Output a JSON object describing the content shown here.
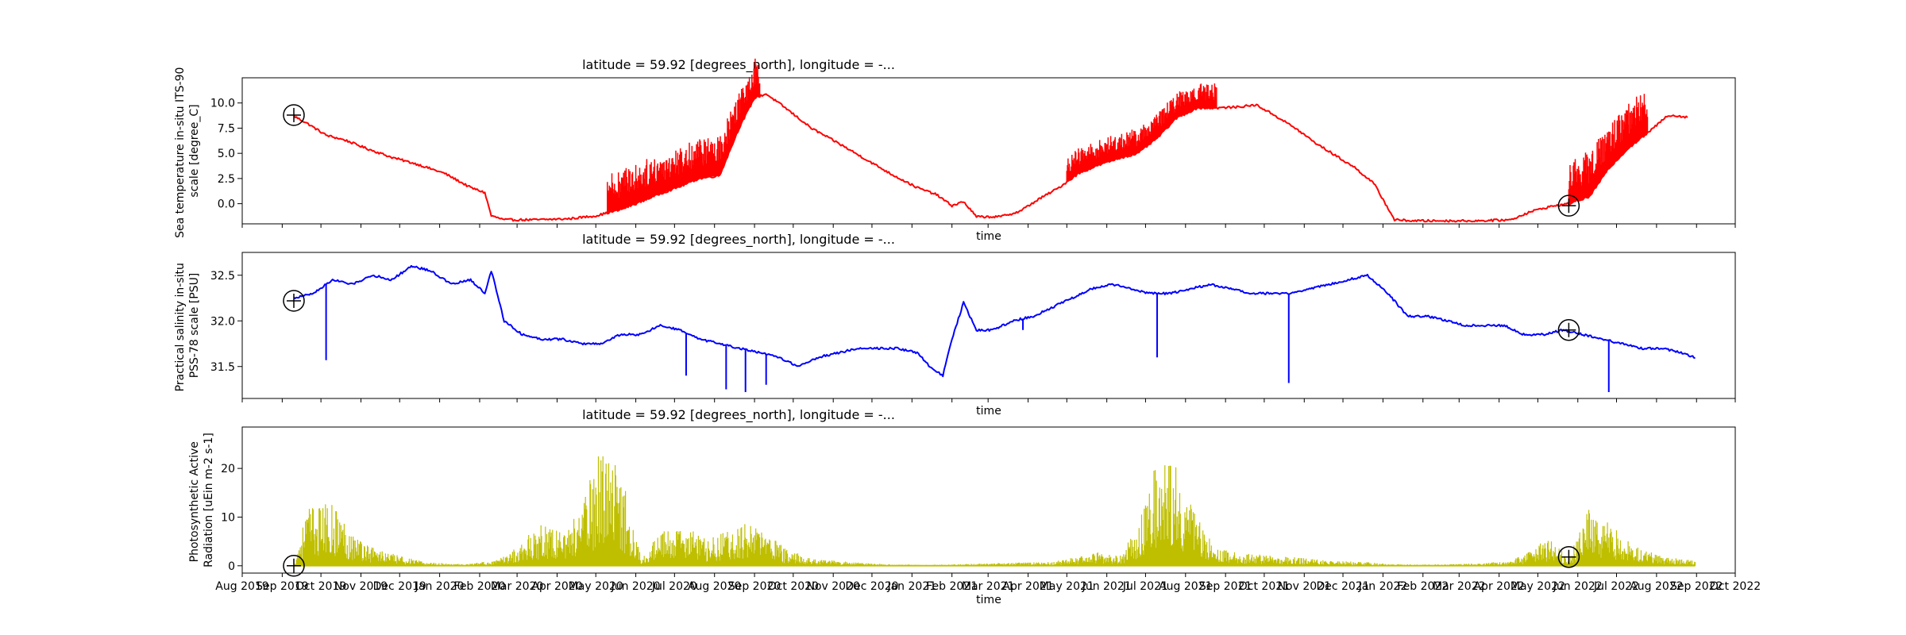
{
  "figure": {
    "marker_color": "#000000",
    "marker_symbol": "circle-plus",
    "x_tick_labels": [
      "Aug 2019",
      "Sep 2019",
      "Oct 2019",
      "Nov 2019",
      "Dec 2019",
      "Jan 2020",
      "Feb 2020",
      "Mar 2020",
      "Apr 2020",
      "May 2020",
      "Jun 2020",
      "Jul 2020",
      "Aug 2020",
      "Sep 2020",
      "Oct 2020",
      "Nov 2020",
      "Dec 2020",
      "Jan 2021",
      "Feb 2021",
      "Mar 2021",
      "Apr 2021",
      "May 2021",
      "Jun 2021",
      "Jul 2021",
      "Aug 2021",
      "Sep 2021",
      "Oct 2021",
      "Nov 2021",
      "Dec 2021",
      "Jan 2022",
      "Feb 2022",
      "Mar 2022",
      "Apr 2022",
      "May 2022",
      "Jun 2022",
      "Jul 2022",
      "Aug 2022",
      "Sep 2022",
      "Oct 2022"
    ]
  },
  "chart_data": [
    {
      "type": "line",
      "title": "latitude = 59.92 [degrees_north], longitude = -...",
      "xlabel": "time",
      "ylabel": [
        "Sea temperature in-situ ITS-90",
        "scale [degree_C]"
      ],
      "color": "#ff0000",
      "xlim": [
        "2019-08-01",
        "2022-10-01"
      ],
      "ylim": [
        -2,
        12.5
      ],
      "yticks": [
        0.0,
        2.5,
        5.0,
        7.5,
        10.0
      ],
      "ytick_labels": [
        "0.0",
        "2.5",
        "5.0",
        "7.5",
        "10.0"
      ],
      "markers": [
        {
          "date": "2019-09-10",
          "value": 8.8
        },
        {
          "date": "2022-05-25",
          "value": -0.2
        }
      ],
      "x": [
        "2019-09-10",
        "2019-09-20",
        "2019-10-05",
        "2019-10-20",
        "2019-11-05",
        "2019-11-25",
        "2019-12-15",
        "2020-01-05",
        "2020-01-25",
        "2020-02-05",
        "2020-02-10",
        "2020-02-20",
        "2020-03-15",
        "2020-04-10",
        "2020-05-01",
        "2020-05-20",
        "2020-06-01",
        "2020-06-20",
        "2020-07-05",
        "2020-07-20",
        "2020-08-05",
        "2020-08-20",
        "2020-09-01",
        "2020-09-10",
        "2020-09-25",
        "2020-10-15",
        "2020-11-05",
        "2020-11-25",
        "2020-12-15",
        "2021-01-05",
        "2021-01-20",
        "2021-02-01",
        "2021-02-10",
        "2021-02-20",
        "2021-03-10",
        "2021-03-25",
        "2021-04-10",
        "2021-04-25",
        "2021-05-10",
        "2021-05-25",
        "2021-06-10",
        "2021-06-25",
        "2021-07-10",
        "2021-07-25",
        "2021-08-10",
        "2021-08-25",
        "2021-09-10",
        "2021-09-25",
        "2021-10-10",
        "2021-10-25",
        "2021-11-10",
        "2021-11-25",
        "2021-12-10",
        "2021-12-25",
        "2022-01-10",
        "2022-01-25",
        "2022-02-15",
        "2022-03-15",
        "2022-04-10",
        "2022-04-25",
        "2022-05-10",
        "2022-05-25",
        "2022-06-10",
        "2022-06-25",
        "2022-07-10",
        "2022-07-25",
        "2022-08-10",
        "2022-08-25"
      ],
      "y": [
        8.7,
        8.0,
        6.8,
        6.3,
        5.5,
        4.6,
        3.9,
        3.0,
        1.6,
        1.1,
        -1.2,
        -1.6,
        -1.6,
        -1.5,
        -1.2,
        -0.6,
        0.0,
        1.0,
        1.7,
        2.5,
        2.8,
        7.5,
        10.5,
        10.9,
        9.5,
        7.5,
        6.0,
        4.5,
        3.0,
        1.6,
        0.9,
        -0.2,
        0.2,
        -1.3,
        -1.3,
        -0.8,
        0.5,
        1.6,
        3.0,
        3.8,
        4.5,
        5.0,
        6.5,
        8.5,
        9.5,
        9.5,
        9.6,
        9.8,
        8.7,
        7.5,
        6.0,
        4.8,
        3.6,
        2.0,
        -1.6,
        -1.7,
        -1.7,
        -1.7,
        -1.6,
        -0.8,
        -0.3,
        0.0,
        0.7,
        3.5,
        5.5,
        7.0,
        8.8,
        8.6
      ],
      "noise": [
        {
          "from": "2020-05-10",
          "to": "2020-09-05",
          "amp": 4.0
        },
        {
          "from": "2021-05-01",
          "to": "2021-08-25",
          "amp": 2.5
        },
        {
          "from": "2022-05-25",
          "to": "2022-07-25",
          "amp": 4.5
        }
      ]
    },
    {
      "type": "line",
      "title": "latitude = 59.92 [degrees_north], longitude = -...",
      "xlabel": "time",
      "ylabel": [
        "Practical salinity in-situ",
        "PSS-78 scale [PSU]"
      ],
      "color": "#0000ff",
      "xlim": [
        "2019-08-01",
        "2022-10-01"
      ],
      "ylim": [
        31.15,
        32.75
      ],
      "yticks": [
        31.5,
        32.0,
        32.5
      ],
      "ytick_labels": [
        "31.5",
        "32.0",
        "32.5"
      ],
      "markers": [
        {
          "date": "2019-09-10",
          "value": 32.22
        },
        {
          "date": "2022-05-25",
          "value": 31.9
        }
      ],
      "x": [
        "2019-09-10",
        "2019-09-25",
        "2019-10-10",
        "2019-10-25",
        "2019-11-10",
        "2019-11-25",
        "2019-12-10",
        "2019-12-25",
        "2020-01-10",
        "2020-01-25",
        "2020-02-05",
        "2020-02-10",
        "2020-02-20",
        "2020-03-05",
        "2020-03-20",
        "2020-04-05",
        "2020-04-20",
        "2020-05-05",
        "2020-05-20",
        "2020-06-05",
        "2020-06-20",
        "2020-07-05",
        "2020-07-20",
        "2020-08-05",
        "2020-08-20",
        "2020-09-05",
        "2020-09-20",
        "2020-10-05",
        "2020-10-20",
        "2020-11-05",
        "2020-11-20",
        "2020-12-05",
        "2020-12-20",
        "2021-01-05",
        "2021-01-15",
        "2021-01-25",
        "2021-02-01",
        "2021-02-10",
        "2021-02-20",
        "2021-03-05",
        "2021-03-20",
        "2021-04-05",
        "2021-04-20",
        "2021-05-05",
        "2021-05-20",
        "2021-06-05",
        "2021-06-20",
        "2021-07-05",
        "2021-07-20",
        "2021-08-05",
        "2021-08-20",
        "2021-09-05",
        "2021-09-20",
        "2021-10-05",
        "2021-10-20",
        "2021-11-05",
        "2021-11-20",
        "2021-12-05",
        "2021-12-20",
        "2022-01-05",
        "2022-01-20",
        "2022-02-05",
        "2022-02-20",
        "2022-03-05",
        "2022-03-20",
        "2022-04-05",
        "2022-04-20",
        "2022-05-05",
        "2022-05-20",
        "2022-06-05",
        "2022-06-20",
        "2022-07-05",
        "2022-07-20",
        "2022-08-05",
        "2022-08-20",
        "2022-08-31"
      ],
      "y": [
        32.25,
        32.3,
        32.45,
        32.4,
        32.5,
        32.45,
        32.6,
        32.55,
        32.4,
        32.45,
        32.3,
        32.55,
        32.0,
        31.85,
        31.8,
        31.8,
        31.75,
        31.75,
        31.85,
        31.85,
        31.95,
        31.9,
        31.8,
        31.75,
        31.7,
        31.65,
        31.6,
        31.5,
        31.6,
        31.65,
        31.7,
        31.7,
        31.7,
        31.65,
        31.5,
        31.4,
        31.8,
        32.2,
        31.9,
        31.9,
        32.0,
        32.05,
        32.15,
        32.25,
        32.35,
        32.4,
        32.35,
        32.3,
        32.3,
        32.35,
        32.4,
        32.35,
        32.3,
        32.3,
        32.3,
        32.35,
        32.4,
        32.45,
        32.5,
        32.3,
        32.05,
        32.05,
        32.0,
        31.95,
        31.95,
        31.95,
        31.85,
        31.85,
        31.9,
        31.85,
        31.8,
        31.75,
        31.7,
        31.7,
        31.65,
        31.6
      ],
      "spikes": [
        {
          "date": "2019-10-05",
          "value": 31.57
        },
        {
          "date": "2020-07-10",
          "value": 31.4
        },
        {
          "date": "2020-08-10",
          "value": 31.25
        },
        {
          "date": "2020-08-25",
          "value": 31.22
        },
        {
          "date": "2020-09-10",
          "value": 31.3
        },
        {
          "date": "2021-03-28",
          "value": 31.9
        },
        {
          "date": "2021-07-10",
          "value": 31.6
        },
        {
          "date": "2021-10-20",
          "value": 31.32
        },
        {
          "date": "2022-06-25",
          "value": 31.22
        }
      ]
    },
    {
      "type": "area",
      "title": "latitude = 59.92 [degrees_north], longitude = -...",
      "xlabel": "time",
      "ylabel": [
        "Photosynthetic Active",
        "Radiation [uEin m-2 s-1]"
      ],
      "color": "#bfbf00",
      "xlim": [
        "2019-08-01",
        "2022-10-01"
      ],
      "ylim": [
        -1.5,
        28.5
      ],
      "yticks": [
        0,
        10,
        20
      ],
      "ytick_labels": [
        "0",
        "10",
        "20"
      ],
      "markers": [
        {
          "date": "2019-09-10",
          "value": 0.0
        },
        {
          "date": "2022-05-25",
          "value": 1.8
        }
      ],
      "x": [
        "2019-09-10",
        "2019-09-20",
        "2019-10-10",
        "2019-10-25",
        "2019-11-10",
        "2019-11-25",
        "2019-12-20",
        "2020-01-20",
        "2020-02-15",
        "2020-03-01",
        "2020-03-20",
        "2020-04-05",
        "2020-04-20",
        "2020-05-05",
        "2020-05-20",
        "2020-06-05",
        "2020-06-20",
        "2020-07-10",
        "2020-07-25",
        "2020-08-10",
        "2020-08-25",
        "2020-09-10",
        "2020-09-25",
        "2020-10-15",
        "2020-11-15",
        "2020-12-15",
        "2021-01-15",
        "2021-02-15",
        "2021-03-15",
        "2021-04-15",
        "2021-05-10",
        "2021-05-25",
        "2021-06-10",
        "2021-06-25",
        "2021-07-10",
        "2021-07-25",
        "2021-08-10",
        "2021-08-25",
        "2021-09-15",
        "2021-10-15",
        "2021-11-15",
        "2021-12-15",
        "2022-01-15",
        "2022-02-15",
        "2022-03-15",
        "2022-04-10",
        "2022-04-25",
        "2022-05-10",
        "2022-05-25",
        "2022-06-10",
        "2022-06-25",
        "2022-07-15",
        "2022-08-05",
        "2022-08-31"
      ],
      "y": [
        0.0,
        12.0,
        13.0,
        7.0,
        4.0,
        2.5,
        0.8,
        0.3,
        1.2,
        4.0,
        9.0,
        7.0,
        12.0,
        25.0,
        20.0,
        2.0,
        7.0,
        8.0,
        5.5,
        7.0,
        9.0,
        7.0,
        3.5,
        1.5,
        0.8,
        0.3,
        0.2,
        0.4,
        0.6,
        0.8,
        1.8,
        3.0,
        2.0,
        8.0,
        24.0,
        22.0,
        10.0,
        3.5,
        2.5,
        2.0,
        1.2,
        0.8,
        0.3,
        0.3,
        0.5,
        1.0,
        3.0,
        6.0,
        1.8,
        12.0,
        9.0,
        4.0,
        2.0,
        1.0
      ]
    }
  ]
}
